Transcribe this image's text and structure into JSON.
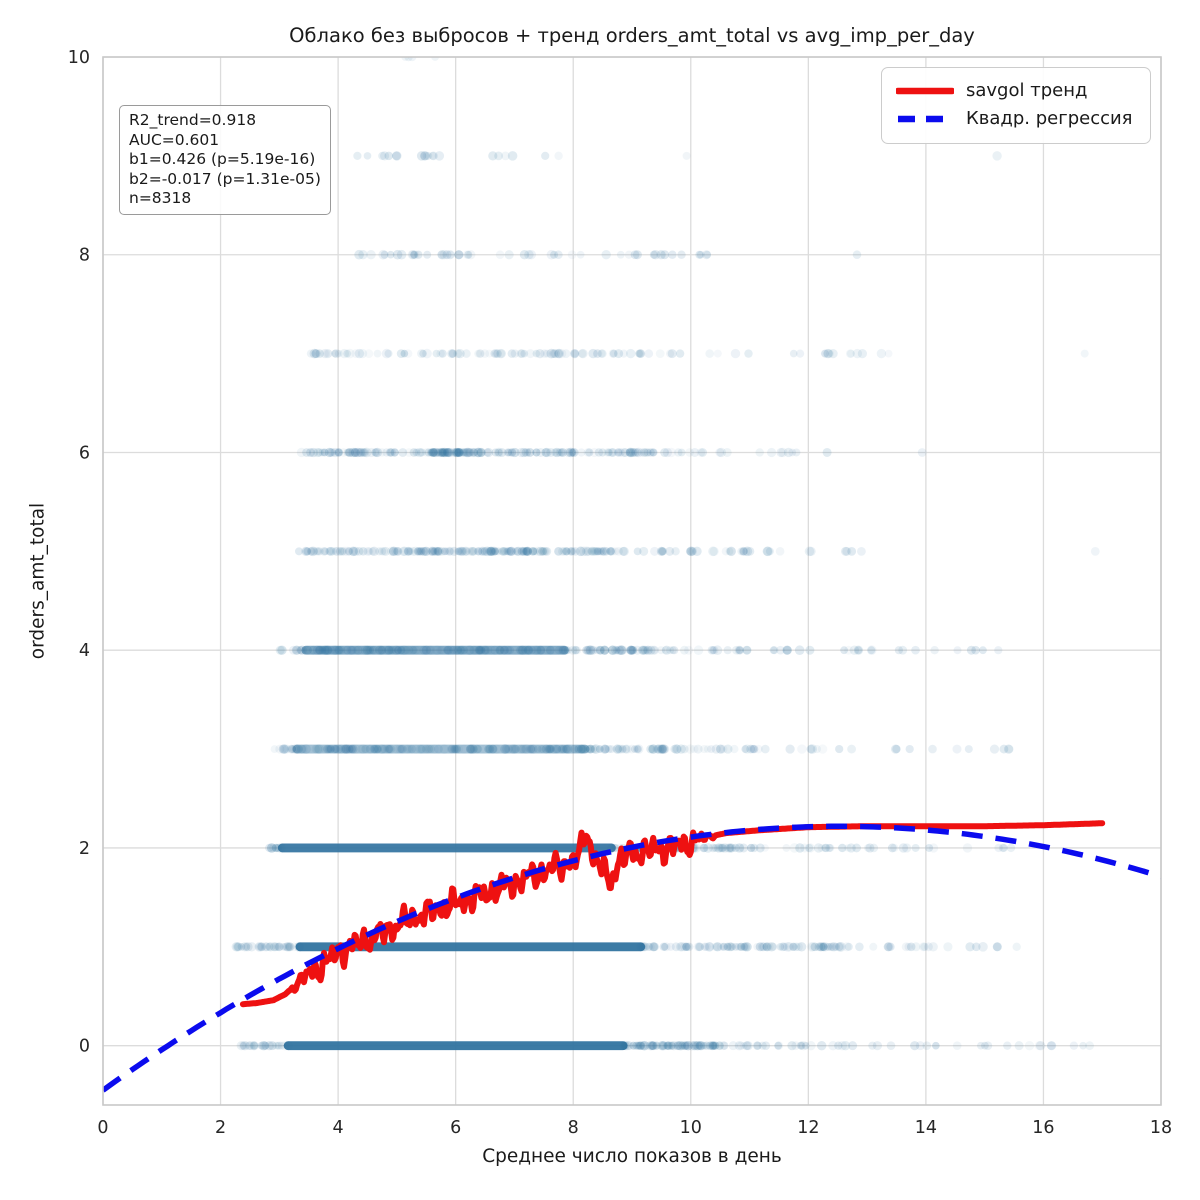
{
  "title": "Облако без выбросов + тренд orders_amt_total vs avg_imp_per_day",
  "axes": {
    "xlabel": "Среднее число показов в день",
    "ylabel": "orders_amt_total",
    "xticks": [
      0,
      2,
      4,
      6,
      8,
      10,
      12,
      14,
      16,
      18
    ],
    "yticks": [
      0,
      2,
      4,
      6,
      8,
      10
    ],
    "xlim": [
      0,
      18
    ],
    "ylim": [
      -0.6,
      10
    ]
  },
  "stats_box": {
    "lines": [
      "R2_trend=0.918",
      "AUC=0.601",
      "b1=0.426 (p=5.19e-16)",
      "b2=-0.017 (p=1.31e-05)",
      "n=8318"
    ]
  },
  "legend": {
    "items": [
      {
        "label": "savgol тренд",
        "color": "#ee1111",
        "style": "solid"
      },
      {
        "label": "Квадр. регрессия",
        "color": "#0b0bee",
        "style": "dashed"
      }
    ]
  },
  "colors": {
    "scatter": "#3274a1",
    "trend_red": "#ee1111",
    "regression_blue": "#0b0bee",
    "grid": "#dcdcdc",
    "spine": "#c8c8c8",
    "tick_text": "#262626"
  },
  "chart_data": {
    "type": "scatter",
    "title": "Облако без выбросов + тренд orders_amt_total vs avg_imp_per_day",
    "xlabel": "Среднее число показов в день",
    "ylabel": "orders_amt_total",
    "xlim": [
      0,
      18
    ],
    "ylim": [
      -0.6,
      10
    ],
    "grid": true,
    "legend_position": "upper right",
    "n_points": 8318,
    "scatter_bands": [
      {
        "y": 0,
        "core": [
          3.15,
          8.85
        ],
        "core_opacity": 0.95,
        "segments": [
          [
            2.35,
            3.15,
            26
          ],
          [
            8.85,
            10.6,
            90
          ],
          [
            10.6,
            13.2,
            30
          ],
          [
            13.2,
            17.05,
            20
          ]
        ]
      },
      {
        "y": 1,
        "core": [
          3.35,
          9.15
        ],
        "core_opacity": 0.95,
        "segments": [
          [
            2.25,
            3.35,
            34
          ],
          [
            9.15,
            12.6,
            95
          ],
          [
            12.6,
            15.6,
            24
          ]
        ]
      },
      {
        "y": 2,
        "core": [
          3.05,
          8.65
        ],
        "core_opacity": 0.92,
        "segments": [
          [
            2.8,
            3.05,
            10
          ],
          [
            8.65,
            10.9,
            80
          ],
          [
            10.9,
            13.2,
            26
          ],
          [
            13.2,
            15.45,
            12
          ]
        ]
      },
      {
        "y": 3,
        "core": [
          3.3,
          8.2
        ],
        "core_opacity": 0.45,
        "segments": [
          [
            2.9,
            3.3,
            14
          ],
          [
            3.3,
            8.2,
            160
          ],
          [
            8.2,
            10.6,
            60
          ],
          [
            10.6,
            13.0,
            18
          ],
          [
            13.0,
            15.5,
            10
          ]
        ]
      },
      {
        "y": 4,
        "core": [
          3.45,
          7.85
        ],
        "core_opacity": 0.6,
        "segments": [
          [
            3.0,
            3.45,
            12
          ],
          [
            3.45,
            7.85,
            140
          ],
          [
            7.85,
            9.7,
            60
          ],
          [
            9.7,
            13.4,
            30
          ],
          [
            13.4,
            15.35,
            9
          ]
        ]
      },
      {
        "y": 5,
        "segments": [
          [
            3.3,
            3.9,
            16
          ],
          [
            3.9,
            8.9,
            190
          ],
          [
            8.9,
            11.1,
            28
          ],
          [
            11.1,
            13.3,
            10
          ],
          [
            16.85,
            16.95,
            1
          ]
        ]
      },
      {
        "y": 6,
        "segments": [
          [
            3.3,
            5.6,
            70
          ],
          [
            5.6,
            6.45,
            70
          ],
          [
            6.45,
            9.4,
            80
          ],
          [
            9.4,
            12.6,
            20
          ],
          [
            13.85,
            13.95,
            1
          ]
        ]
      },
      {
        "y": 7,
        "segments": [
          [
            3.5,
            9.3,
            85
          ],
          [
            9.3,
            13.7,
            22
          ],
          [
            16.65,
            16.75,
            1
          ]
        ]
      },
      {
        "y": 8,
        "segments": [
          [
            4.3,
            7.1,
            30
          ],
          [
            7.1,
            10.3,
            24
          ],
          [
            12.75,
            12.85,
            1
          ]
        ]
      },
      {
        "y": 9,
        "segments": [
          [
            4.3,
            5.0,
            7
          ],
          [
            5.4,
            6.4,
            8
          ],
          [
            6.6,
            7.0,
            4
          ],
          [
            7.5,
            7.8,
            2
          ],
          [
            9.85,
            9.95,
            1
          ],
          [
            15.15,
            15.25,
            1
          ]
        ]
      },
      {
        "y": 10,
        "segments": [
          [
            4.95,
            5.3,
            3
          ],
          [
            5.65,
            5.75,
            1
          ]
        ]
      }
    ],
    "series": [
      {
        "name": "savgol тренд",
        "type": "line",
        "style": "solid",
        "color": "#ee1111",
        "width": 6,
        "backbone": [
          [
            2.38,
            0.42
          ],
          [
            2.6,
            0.43
          ],
          [
            2.9,
            0.46
          ],
          [
            3.1,
            0.52
          ],
          [
            3.4,
            0.68
          ],
          [
            3.7,
            0.8
          ],
          [
            4.0,
            0.95
          ],
          [
            4.3,
            1.02
          ],
          [
            4.6,
            1.1
          ],
          [
            5.0,
            1.22
          ],
          [
            5.4,
            1.32
          ],
          [
            5.8,
            1.4
          ],
          [
            6.2,
            1.48
          ],
          [
            6.6,
            1.56
          ],
          [
            7.0,
            1.65
          ],
          [
            7.4,
            1.74
          ],
          [
            7.8,
            1.83
          ],
          [
            8.2,
            1.88
          ],
          [
            8.6,
            1.83
          ],
          [
            9.0,
            1.95
          ],
          [
            9.4,
            1.98
          ],
          [
            9.8,
            2.02
          ],
          [
            10.2,
            2.1
          ],
          [
            10.6,
            2.15
          ],
          [
            11.2,
            2.18
          ],
          [
            12.0,
            2.21
          ],
          [
            13.0,
            2.22
          ],
          [
            14.0,
            2.22
          ],
          [
            15.0,
            2.22
          ],
          [
            16.0,
            2.23
          ],
          [
            17.0,
            2.25
          ]
        ],
        "noise": {
          "x0": 3.12,
          "x1": 10.45,
          "amplitude": 0.125
        },
        "stats": {
          "R2_trend": 0.918,
          "AUC": 0.601
        }
      },
      {
        "name": "Квадр. регрессия",
        "type": "line",
        "style": "dashed",
        "color": "#0b0bee",
        "width": 5.5,
        "quadratic": {
          "b0": -0.45,
          "b1": 0.426,
          "b2": -0.017,
          "b1_p": "5.19e-16",
          "b2_p": "1.31e-05"
        },
        "x_range": [
          0,
          18
        ]
      }
    ]
  }
}
